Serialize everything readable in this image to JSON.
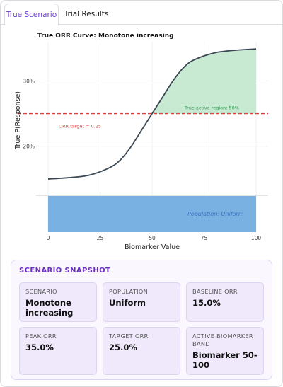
{
  "tabs": [
    {
      "label": "True Scenario",
      "active": true
    },
    {
      "label": "Trial Results",
      "active": false
    }
  ],
  "chart_data": {
    "type": "line",
    "title": "True ORR Curve: Monotone increasing",
    "xlabel": "Biomarker Value",
    "ylabel": "True P(Response)",
    "xlim": [
      0,
      100
    ],
    "ylim": [
      0.125,
      0.36
    ],
    "x_ticks": [
      0,
      25,
      50,
      75,
      100
    ],
    "x_tick_labels": [
      "0",
      "25",
      "50",
      "75",
      "100"
    ],
    "y_ticks": [
      0.2,
      0.3
    ],
    "y_tick_labels": [
      "20%",
      "30%"
    ],
    "series": [
      {
        "x": [
          0,
          10,
          20,
          30,
          35,
          40,
          45,
          50,
          55,
          60,
          65,
          70,
          80,
          90,
          100
        ],
        "y": [
          0.15,
          0.152,
          0.156,
          0.168,
          0.18,
          0.2,
          0.225,
          0.25,
          0.275,
          0.3,
          0.32,
          0.332,
          0.343,
          0.347,
          0.349
        ]
      }
    ],
    "target_line": {
      "y": 0.25,
      "label": "ORR target = 0.25",
      "color": "#e53935"
    },
    "active_region": {
      "x_start": 50,
      "x_end": 100,
      "label": "True active region: 50%",
      "color": "#c8ead2"
    },
    "population": {
      "label": "Population: Uniform",
      "color": "#78b1e2"
    },
    "grid": true
  },
  "snapshot": {
    "title": "SCENARIO SNAPSHOT",
    "cards": [
      {
        "label": "SCENARIO",
        "value": "Monotone increasing"
      },
      {
        "label": "POPULATION",
        "value": "Uniform"
      },
      {
        "label": "BASELINE ORR",
        "value": "15.0%"
      },
      {
        "label": "PEAK ORR",
        "value": "35.0%"
      },
      {
        "label": "TARGET ORR",
        "value": "25.0%"
      },
      {
        "label": "ACTIVE BIOMARKER BAND",
        "value": "Biomarker 50-100"
      }
    ]
  }
}
